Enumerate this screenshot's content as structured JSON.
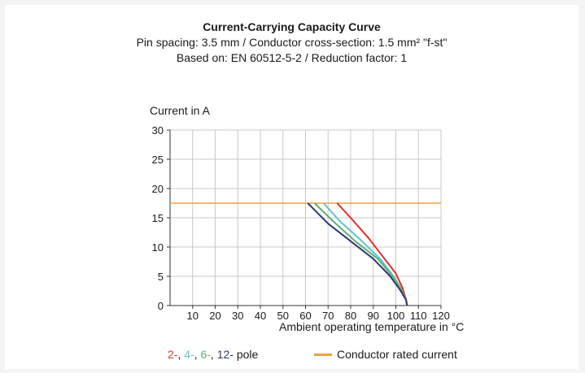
{
  "chart_data": {
    "type": "line",
    "title": "Current-Carrying Capacity Curve",
    "subtitle_1": "Pin spacing: 3.5 mm / Conductor cross-section: 1.5 mm² \"f-st\"",
    "subtitle_2": "Based on: EN 60512-5-2 / Reduction factor: 1",
    "xlabel": "Ambient operating temperature in °C",
    "ylabel": "Current in A",
    "xlim": [
      0,
      120
    ],
    "ylim": [
      0,
      30
    ],
    "xticks": [
      10,
      20,
      30,
      40,
      50,
      60,
      70,
      80,
      90,
      100,
      110,
      120
    ],
    "yticks": [
      0,
      5,
      10,
      15,
      20,
      25,
      30
    ],
    "grid": true,
    "rated_current": {
      "name": "Conductor rated current",
      "value": 17.5,
      "color": "#f0a040"
    },
    "series": [
      {
        "name": "2-",
        "color": "#e0302a",
        "x": [
          74,
          80,
          88,
          95,
          100,
          103,
          104.5,
          105
        ],
        "y": [
          17.5,
          15,
          11.5,
          8,
          5.5,
          3,
          1,
          0
        ]
      },
      {
        "name": "4-",
        "color": "#5bc4d6",
        "x": [
          68,
          75,
          85,
          93,
          99,
          102.5,
          104.5,
          105
        ],
        "y": [
          17.5,
          14.5,
          11,
          8,
          5,
          2.8,
          1,
          0
        ]
      },
      {
        "name": "6-",
        "color": "#5fb070",
        "x": [
          64,
          72,
          82,
          92,
          98.5,
          102.5,
          104.5,
          105
        ],
        "y": [
          17.5,
          14.5,
          11,
          8,
          5,
          2.8,
          1,
          0
        ]
      },
      {
        "name": "12-",
        "color": "#2e3578",
        "x": [
          61,
          70,
          80,
          90,
          97.5,
          102,
          104.5,
          105
        ],
        "y": [
          17.5,
          14,
          11,
          8,
          5,
          2.6,
          1,
          0
        ]
      }
    ],
    "legend": {
      "suffix": "pole",
      "separator": ", "
    }
  }
}
